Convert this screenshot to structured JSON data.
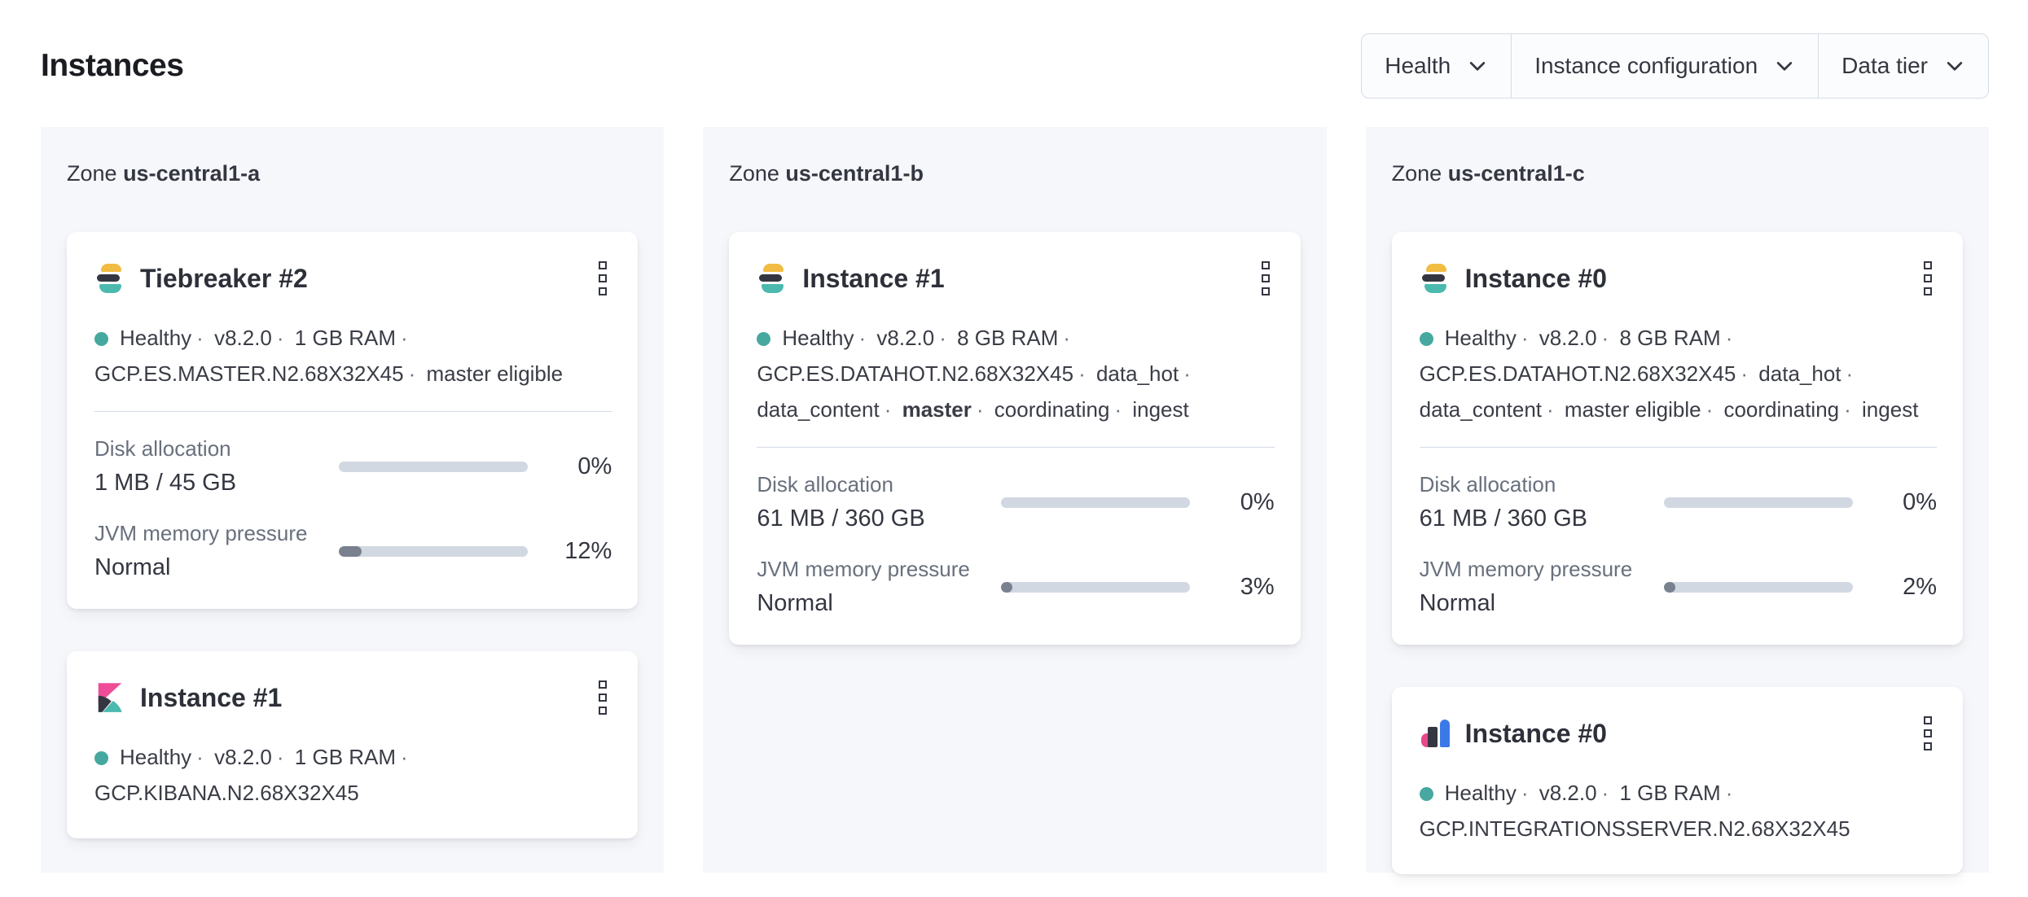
{
  "ui": {
    "separator": "·",
    "zone_prefix": "Zone"
  },
  "header": {
    "title": "Instances"
  },
  "filters": [
    {
      "label": "Health"
    },
    {
      "label": "Instance configuration"
    },
    {
      "label": "Data tier"
    }
  ],
  "colors": {
    "health_dot": "#46a89f",
    "bar_track": "#d2d8e2",
    "bar_fill": "#79818f",
    "zone_background": "#f5f7fa",
    "border": "#d3dae6",
    "text": "#343741",
    "text_muted": "#69707d",
    "es_logo_yellow": "#f2bc42",
    "es_logo_dark": "#343741",
    "es_logo_teal": "#4bb9ae",
    "kibana_pink": "#ee4c96",
    "integrations_blue": "#3c79e8",
    "integrations_pink": "#e8488b"
  },
  "zones": [
    {
      "name": "us-central1-a",
      "cards": [
        {
          "logo": "elasticsearch",
          "title": "Tiebreaker #2",
          "status": [
            "Healthy",
            "v8.2.0",
            "1 GB RAM",
            "GCP.ES.MASTER.N2.68X32X45",
            "master eligible"
          ],
          "metrics": [
            {
              "label": "Disk allocation",
              "value": "1 MB / 45 GB",
              "percent": "0%",
              "fill": 0
            },
            {
              "label": "JVM memory pressure",
              "value": "Normal",
              "percent": "12%",
              "fill": 12
            }
          ]
        },
        {
          "logo": "kibana",
          "title": "Instance #1",
          "status": [
            "Healthy",
            "v8.2.0",
            "1 GB RAM",
            "GCP.KIBANA.N2.68X32X45"
          ]
        }
      ]
    },
    {
      "name": "us-central1-b",
      "cards": [
        {
          "logo": "elasticsearch",
          "title": "Instance #1",
          "status": [
            "Healthy",
            "v8.2.0",
            "8 GB RAM",
            "GCP.ES.DATAHOT.N2.68X32X45",
            "data_hot",
            "data_content",
            "master",
            "coordinating",
            "ingest"
          ],
          "metrics": [
            {
              "label": "Disk allocation",
              "value": "61 MB / 360 GB",
              "percent": "0%",
              "fill": 0
            },
            {
              "label": "JVM memory pressure",
              "value": "Normal",
              "percent": "3%",
              "fill": 3
            }
          ]
        }
      ]
    },
    {
      "name": "us-central1-c",
      "cards": [
        {
          "logo": "elasticsearch",
          "title": "Instance #0",
          "status": [
            "Healthy",
            "v8.2.0",
            "8 GB RAM",
            "GCP.ES.DATAHOT.N2.68X32X45",
            "data_hot",
            "data_content",
            "master eligible",
            "coordinating",
            "ingest"
          ],
          "metrics": [
            {
              "label": "Disk allocation",
              "value": "61 MB / 360 GB",
              "percent": "0%",
              "fill": 0
            },
            {
              "label": "JVM memory pressure",
              "value": "Normal",
              "percent": "2%",
              "fill": 2
            }
          ]
        },
        {
          "logo": "integrations_server",
          "title": "Instance #0",
          "status": [
            "Healthy",
            "v8.2.0",
            "1 GB RAM",
            "GCP.INTEGRATIONSSERVER.N2.68X32X45"
          ]
        }
      ]
    }
  ]
}
